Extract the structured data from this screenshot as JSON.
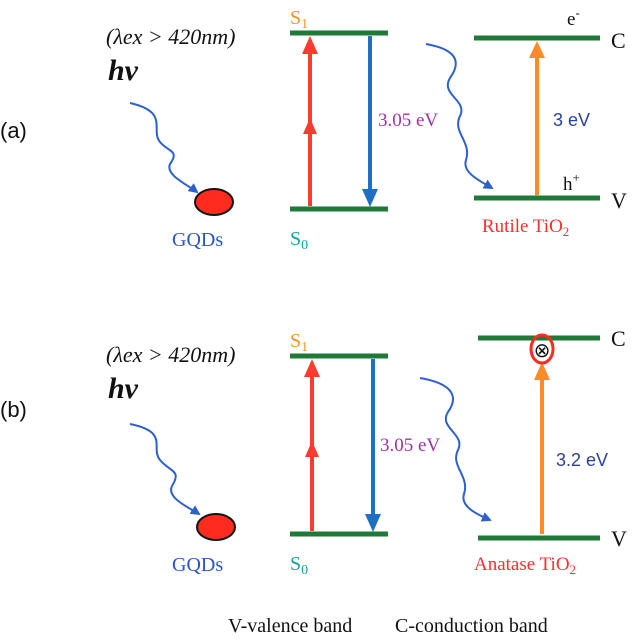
{
  "colors": {
    "level": "#1e7a36",
    "excite": "#ff3b30",
    "emit": "#1f6fc4",
    "tio2_arrow": "#ff8a2a",
    "wave": "#2c5fcf",
    "gap_label_gqd": "#a032a6",
    "gap_label_tio2": "#2b3fa0",
    "s1": "#f7931e",
    "s0": "#14a39a",
    "gqds": "#2b54c8",
    "tio2_name": "#ff2d2d",
    "dot_fill": "#ff2b1e",
    "black": "#111111"
  },
  "panels": [
    {
      "label": "(a)",
      "excitation_condition": "(λex > 420nm)",
      "photon": "hν",
      "quantum_dot": "GQDs",
      "s1": "S1",
      "s0": "S0",
      "gqd_gap": "3.05 eV",
      "tio2_gap": "3 eV",
      "electron": "e-",
      "hole": "h+",
      "conduction": "C",
      "valence": "V",
      "semiconductor": "Rutile TiO2"
    },
    {
      "label": "(b)",
      "excitation_condition": "(λex > 420nm)",
      "photon": "hν",
      "quantum_dot": "GQDs",
      "s1": "S1",
      "s0": "S0",
      "gqd_gap": "3.05 eV",
      "tio2_gap": "3.2 eV",
      "blocked_symbol": "⊗",
      "conduction": "C",
      "valence": "V",
      "semiconductor": "Anatase TiO2"
    }
  ],
  "legend": {
    "valence": "V-valence band",
    "conduction": "C-conduction band"
  }
}
